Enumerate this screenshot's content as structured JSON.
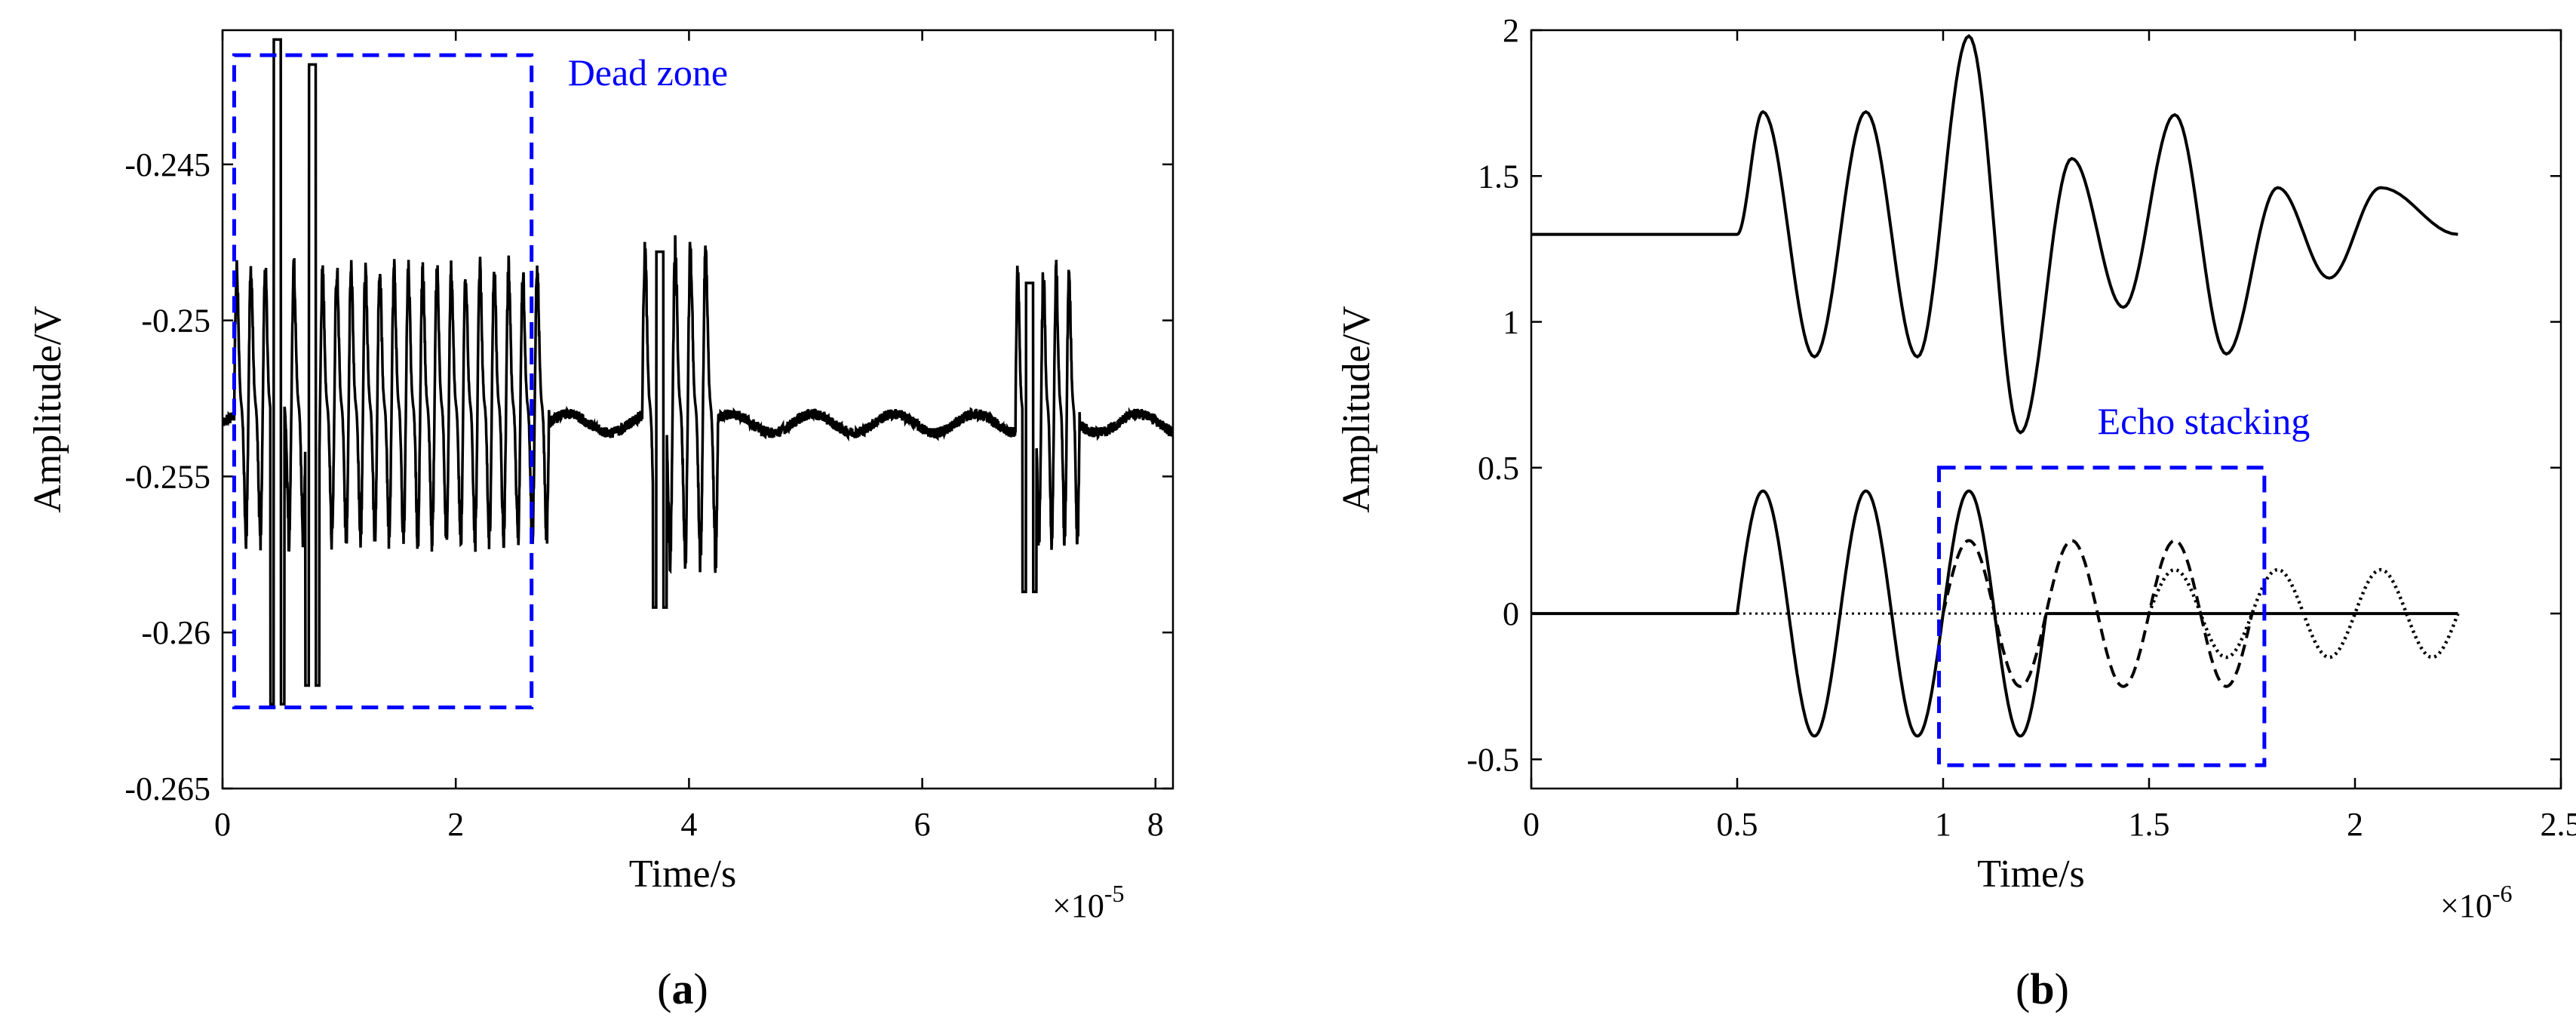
{
  "chart_data": [
    {
      "panel_label": "(a)",
      "type": "line",
      "xlabel": "Time/s",
      "ylabel": "Amplitude/V",
      "x_multiplier": "×10",
      "x_multiplier_exponent": "-5",
      "xlim": [
        0,
        8.15
      ],
      "ylim": [
        -0.265,
        -0.2407
      ],
      "xticks": [
        0,
        2,
        4,
        6,
        8
      ],
      "xtick_labels": [
        "0",
        "2",
        "4",
        "6",
        "8"
      ],
      "yticks": [
        -0.265,
        -0.26,
        -0.255,
        -0.25,
        -0.245
      ],
      "ytick_labels": [
        "-0.265",
        "-0.26",
        "-0.255",
        "-0.25",
        "-0.245"
      ],
      "grid": false,
      "baseline": -0.2533,
      "bursts": [
        {
          "start": 0.1,
          "end": 2.8,
          "cycles": 22,
          "amplitude": 0.0042,
          "max_peak": -0.2418,
          "min_trough": -0.2623
        },
        {
          "start": 3.6,
          "end": 4.25,
          "cycles": 5,
          "amplitude": 0.0048,
          "max_peak": -0.2478,
          "min_trough": -0.2592
        },
        {
          "start": 6.8,
          "end": 7.35,
          "cycles": 5,
          "amplitude": 0.0042,
          "max_peak": -0.2488,
          "min_trough": -0.2587
        }
      ],
      "annotations": [
        {
          "text": "Dead zone",
          "box": {
            "x": [
              0.1,
              2.65
            ],
            "y": [
              -0.2624,
              -0.2415
            ]
          }
        }
      ],
      "series": [
        {
          "color": "#000000"
        }
      ]
    },
    {
      "panel_label": "(b)",
      "type": "line",
      "xlabel": "Time/s",
      "ylabel": "Amplitude/V",
      "x_multiplier": "×10",
      "x_multiplier_exponent": "-6",
      "xlim": [
        0,
        2.5
      ],
      "ylim": [
        -0.6,
        2
      ],
      "xticks": [
        0,
        0.5,
        1,
        1.5,
        2,
        2.5
      ],
      "xtick_labels": [
        "0",
        "0.5",
        "1",
        "1.5",
        "2",
        "2.5"
      ],
      "yticks": [
        -0.5,
        0,
        0.5,
        1,
        1.5,
        2
      ],
      "ytick_labels": [
        "-0.5",
        "0",
        "0.5",
        "1",
        "1.5",
        "2"
      ],
      "grid": false,
      "series": [
        {
          "style": "solid",
          "color": "#000000",
          "offset": 1.3,
          "description_values": {
            "onset": 0.5,
            "period": 0.25,
            "peaks": [
              1.72,
              1.72,
              1.98,
              1.56,
              1.71,
              1.46,
              1.46
            ],
            "troughs": [
              0.88,
              0.88,
              0.62,
              1.05,
              0.89,
              1.15
            ],
            "end": 2.25
          }
        },
        {
          "style": "solid",
          "color": "#000000",
          "offset": 0,
          "amplitude": 0.42,
          "start": 0.5,
          "end": 1.25,
          "period": 0.25
        },
        {
          "style": "dashed",
          "color": "#000000",
          "offset": 0,
          "amplitude": 0.25,
          "start": 1.0,
          "end": 1.75,
          "period": 0.25
        },
        {
          "style": "dotted",
          "color": "#000000",
          "offset": 0,
          "amplitude": 0.15,
          "start": 1.5,
          "end": 2.25,
          "period": 0.25
        }
      ],
      "annotations": [
        {
          "text": "Echo stacking",
          "box": {
            "x": [
              0.99,
              1.78
            ],
            "y": [
              -0.52,
              0.5
            ]
          }
        }
      ]
    }
  ]
}
